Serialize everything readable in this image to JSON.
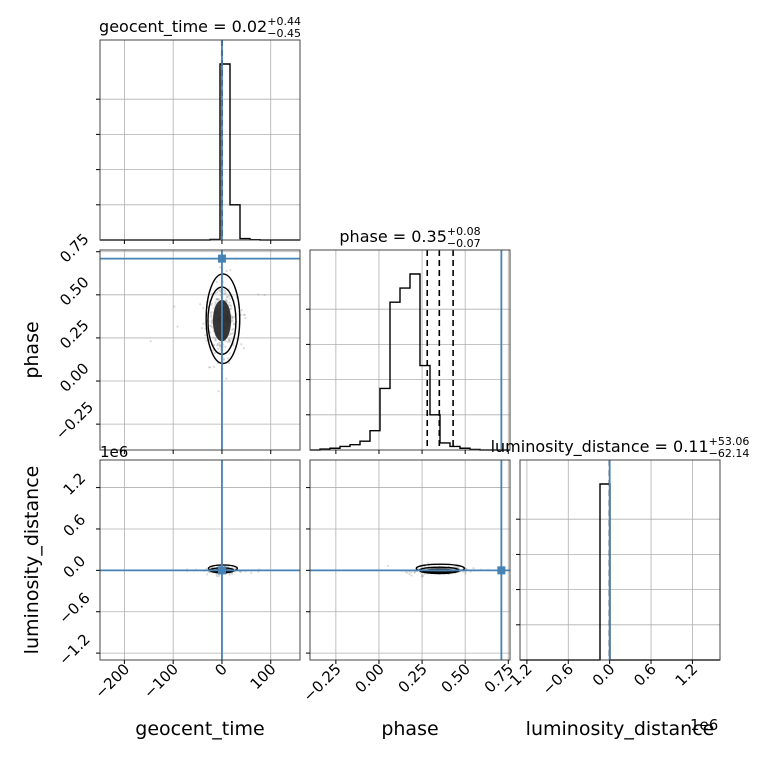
{
  "chart_data": {
    "type": "corner",
    "parameters": [
      "geocent_time",
      "phase",
      "luminosity_distance"
    ],
    "injection": {
      "geocent_time": 0.0,
      "phase": 0.71,
      "luminosity_distance": 0.0
    },
    "injection_color": "#4682b4",
    "titles": [
      {
        "param": "geocent_time",
        "prefix": "geocent_time = ",
        "median": "0.02",
        "plus": "+0.44",
        "minus": "−0.45"
      },
      {
        "param": "phase",
        "prefix": "phase = ",
        "median": "0.35",
        "plus": "+0.08",
        "minus": "−0.07"
      },
      {
        "param": "luminosity_distance",
        "prefix": "luminosity_distance = ",
        "median": "0.11",
        "plus": "+53.06",
        "minus": "−62.14"
      }
    ],
    "axis_labels": {
      "x": [
        "geocent_time",
        "phase",
        "luminosity_distance"
      ],
      "y": [
        "phase",
        "luminosity_distance"
      ]
    },
    "ranges": {
      "geocent_time": [
        -250,
        160
      ],
      "phase": [
        -0.4,
        0.76
      ],
      "luminosity_distance": [
        -1300000,
        1600000
      ]
    },
    "ticks": {
      "geocent_time": {
        "values": [
          -200,
          -100,
          0,
          100
        ],
        "labels": [
          "−200",
          "−100",
          "0",
          "100"
        ]
      },
      "phase": {
        "values": [
          -0.25,
          0.0,
          0.25,
          0.5,
          0.75
        ],
        "labels": [
          "−0.25",
          "0.00",
          "0.25",
          "0.50",
          "0.75"
        ]
      },
      "luminosity_distance": {
        "values": [
          -1200000,
          -600000,
          0,
          600000,
          1200000
        ],
        "labels": [
          "−1.2",
          "−0.6",
          "0.0",
          "0.6",
          "1.2"
        ]
      }
    },
    "offset_text": "1e6",
    "hist_geocent_time": {
      "edges": [
        -250,
        -229.5,
        -209,
        -188.5,
        -168,
        -147.5,
        -127,
        -106.5,
        -86,
        -65.5,
        -45,
        -24.5,
        -4,
        16.5,
        37,
        57.5,
        78,
        98.5,
        119,
        139.5,
        160
      ],
      "counts": [
        0,
        0,
        0,
        0,
        0,
        0,
        0,
        0,
        0,
        0,
        0,
        0.003,
        1.0,
        0.2,
        0.008,
        0.002,
        0,
        0,
        0,
        0
      ]
    },
    "hist_phase": {
      "edges": [
        -0.4,
        -0.342,
        -0.284,
        -0.226,
        -0.168,
        -0.11,
        -0.052,
        0.006,
        0.064,
        0.122,
        0.18,
        0.238,
        0.296,
        0.354,
        0.412,
        0.47,
        0.528,
        0.586,
        0.644,
        0.702,
        0.76
      ],
      "counts": [
        0,
        0.005,
        0.01,
        0.02,
        0.03,
        0.05,
        0.11,
        0.35,
        0.84,
        0.92,
        1.0,
        0.48,
        0.2,
        0.04,
        0.02,
        0.01,
        0.003,
        0,
        0,
        0
      ]
    },
    "hist_luminosity_distance": {
      "edges": [
        -1300000,
        -1155000,
        -1010000,
        -865000,
        -720000,
        -575000,
        -430000,
        -285000,
        -140000,
        5000,
        150000,
        295000,
        440000,
        585000,
        730000,
        875000,
        1020000,
        1165000,
        1310000,
        1455000,
        1600000
      ],
      "counts": [
        0,
        0,
        0,
        0,
        0,
        0,
        0,
        0,
        1.0,
        0,
        0,
        0,
        0,
        0,
        0,
        0,
        0,
        0,
        0,
        0
      ]
    },
    "quantiles": {
      "geocent_time": [
        -0.43,
        0.02,
        0.46
      ],
      "phase": [
        0.28,
        0.35,
        0.43
      ],
      "luminosity_distance": [
        -62.03,
        0.11,
        53.17
      ]
    },
    "scatter_center": {
      "geocent_time": 0,
      "phase": 0.35,
      "luminosity_distance": 0
    },
    "grid": true
  }
}
